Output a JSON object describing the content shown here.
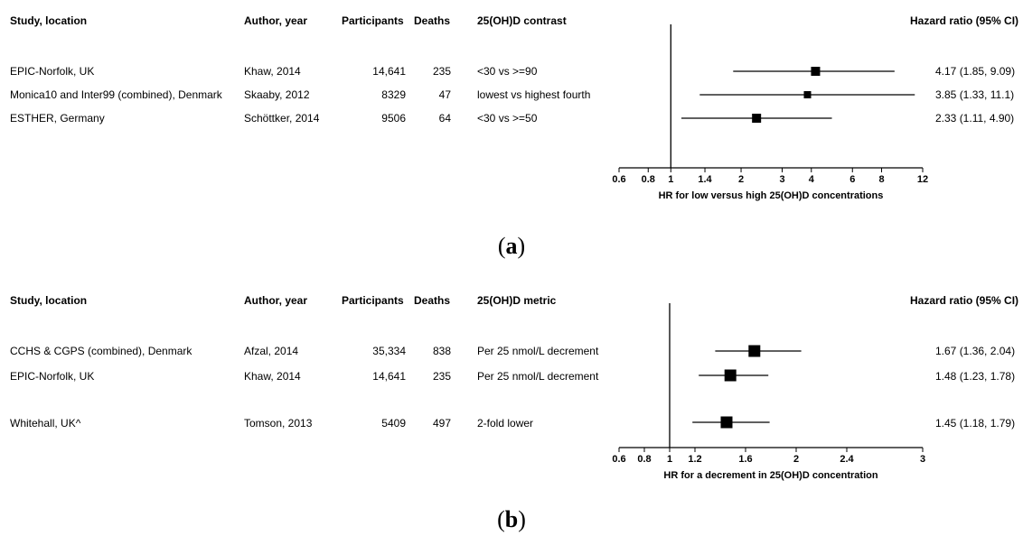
{
  "panels": [
    {
      "label": "a",
      "columns": {
        "study": "Study, location",
        "author": "Author, year",
        "participants": "Participants",
        "deaths": "Deaths",
        "contrast": "25(OH)D contrast",
        "hr": "Hazard ratio (95% CI)"
      },
      "rows": [
        {
          "study": "EPIC-Norfolk, UK",
          "author": "Khaw, 2014",
          "participants": "14,641",
          "deaths": "235",
          "contrast": "<30 vs >=90",
          "ci_text": "4.17 (1.85, 9.09)"
        },
        {
          "study": "Monica10 and Inter99 (combined), Denmark",
          "author": "Skaaby, 2012",
          "participants": "8329",
          "deaths": "47",
          "contrast": "lowest vs highest fourth",
          "ci_text": "3.85 (1.33, 11.1)"
        },
        {
          "study": "ESTHER, Germany",
          "author": "Schöttker, 2014",
          "participants": "9506",
          "deaths": "64",
          "contrast": "<30 vs >=50",
          "ci_text": "2.33 (1.11, 4.90)"
        }
      ]
    },
    {
      "label": "b",
      "columns": {
        "study": "Study, location",
        "author": "Author, year",
        "participants": "Participants",
        "deaths": "Deaths",
        "contrast": "25(OH)D metric",
        "hr": "Hazard ratio (95% CI)"
      },
      "rows": [
        {
          "study": "CCHS & CGPS (combined), Denmark",
          "author": "Afzal, 2014",
          "participants": "35,334",
          "deaths": "838",
          "contrast": "Per 25 nmol/L decrement",
          "ci_text": "1.67 (1.36, 2.04)"
        },
        {
          "study": "EPIC-Norfolk, UK",
          "author": "Khaw, 2014",
          "participants": "14,641",
          "deaths": "235",
          "contrast": "Per 25 nmol/L decrement",
          "ci_text": "1.48 (1.23, 1.78)"
        },
        {
          "study": "Whitehall, UK^",
          "author": "Tomson, 2013",
          "participants": "5409",
          "deaths": "497",
          "contrast": "2-fold lower",
          "ci_text": "1.45 (1.18, 1.79)"
        }
      ]
    }
  ],
  "chart_data": [
    {
      "type": "scatter",
      "subtype": "forest",
      "panel": "a",
      "xlabel": "HR for low versus high 25(OH)D concentrations",
      "x_scale": "log",
      "xlim": [
        0.6,
        12
      ],
      "reference_line": 1,
      "ticks": [
        0.6,
        0.8,
        1,
        1.4,
        2,
        3,
        4,
        6,
        8,
        12
      ],
      "tick_labels": [
        "0.6",
        "0.8",
        "1",
        "1.4",
        "2",
        "3",
        "4",
        "6",
        "8",
        "12"
      ],
      "points": [
        {
          "study": "EPIC-Norfolk, UK",
          "hr": 4.17,
          "lower": 1.85,
          "upper": 9.09
        },
        {
          "study": "Monica10 and Inter99 (combined), Denmark",
          "hr": 3.85,
          "lower": 1.33,
          "upper": 11.1
        },
        {
          "study": "ESTHER, Germany",
          "hr": 2.33,
          "lower": 1.11,
          "upper": 4.9
        }
      ]
    },
    {
      "type": "scatter",
      "subtype": "forest",
      "panel": "b",
      "xlabel": "HR for a decrement in 25(OH)D concentration",
      "x_scale": "linear",
      "xlim": [
        0.6,
        3
      ],
      "reference_line": 1,
      "ticks": [
        0.6,
        0.8,
        1,
        1.2,
        1.6,
        2,
        2.4,
        3
      ],
      "tick_labels": [
        "0.6",
        "0.8",
        "1",
        "1.2",
        "1.6",
        "2",
        "2.4",
        "3"
      ],
      "points": [
        {
          "study": "CCHS & CGPS (combined), Denmark",
          "hr": 1.67,
          "lower": 1.36,
          "upper": 2.04
        },
        {
          "study": "EPIC-Norfolk, UK",
          "hr": 1.48,
          "lower": 1.23,
          "upper": 1.78
        },
        {
          "study": "Whitehall, UK^",
          "hr": 1.45,
          "lower": 1.18,
          "upper": 1.79
        }
      ]
    }
  ]
}
